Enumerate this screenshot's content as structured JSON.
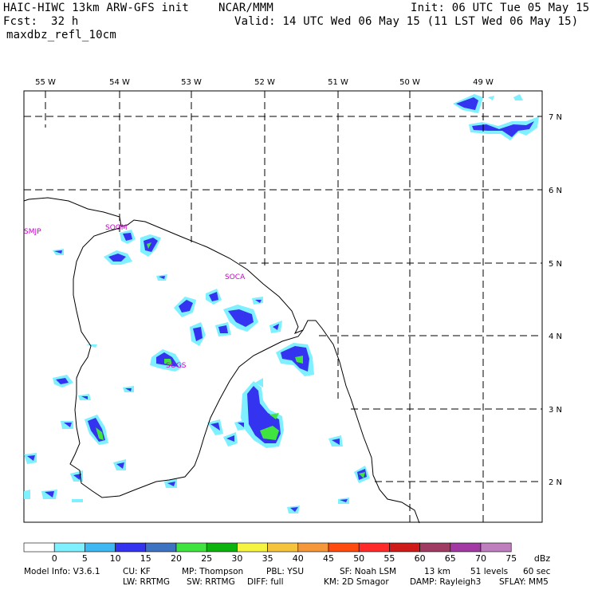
{
  "header": {
    "model": "HAIC-HIWC 13km ARW-GFS init",
    "org": "NCAR/MMM",
    "init": "Init: 06 UTC Tue 05 May 15",
    "fcst_label": "Fcst:",
    "fcst_value": "32 h",
    "valid": "Valid: 14 UTC Wed 06 May 15 (11 LST Wed 06 May 15)",
    "field": "maxdbz_refl_10cm"
  },
  "map": {
    "lon_labels": [
      "55 W",
      "54 W",
      "53 W",
      "52 W",
      "51 W",
      "50 W",
      "49 W"
    ],
    "lat_labels": [
      "7 N",
      "6 N",
      "5 N",
      "4 N",
      "3 N",
      "2 N"
    ],
    "stations": [
      "SMJP",
      "SOGM",
      "SOCA",
      "SOGS"
    ]
  },
  "colorbar": {
    "unit": "dBz",
    "labels": [
      "0",
      "5",
      "10",
      "15",
      "20",
      "25",
      "30",
      "35",
      "40",
      "45",
      "50",
      "55",
      "60",
      "65",
      "70",
      "75"
    ],
    "colors": [
      "#ffffff",
      "#7ff0ff",
      "#3fb8f2",
      "#3434f0",
      "#3e73c2",
      "#3fe43f",
      "#0db30d",
      "#f5f541",
      "#f5c43c",
      "#f5983c",
      "#ff4a10",
      "#ff2b2b",
      "#cf1a1a",
      "#a03c63",
      "#a33aa3",
      "#bf7fbf"
    ]
  },
  "footer": {
    "line1": [
      "Model Info: V3.6.1",
      "CU: KF",
      "MP: Thompson",
      "PBL: YSU",
      "SF: Noah LSM",
      "13 km",
      "51 levels",
      "60 sec"
    ],
    "line2": [
      "LW: RRTMG",
      "SW: RRTMG",
      "DIFF: full",
      "KM: 2D Smagor",
      "DAMP: Rayleigh3",
      "SFLAY: MM5"
    ]
  }
}
